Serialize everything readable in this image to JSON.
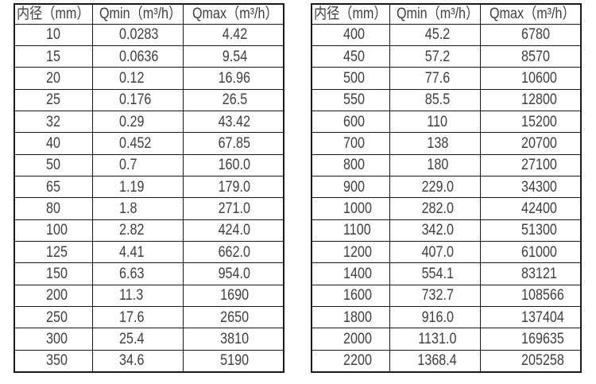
{
  "page": {
    "background": "#ffffff",
    "description": "two flow-rate specification tables side by side"
  },
  "style": {
    "border_color": "#1a1a1a",
    "text_color": "#404040",
    "table_background": "#ffffff"
  },
  "tables": [
    {
      "name": "flow-table-small-diameters",
      "columns": [
        "内径（mm）",
        "Qmin（m³/h）",
        "Qmax（m³/h）"
      ],
      "rows": [
        [
          "10",
          "0.0283",
          "4.42"
        ],
        [
          "15",
          "0.0636",
          "9.54"
        ],
        [
          "20",
          "0.12",
          "16.96"
        ],
        [
          "25",
          "0.176",
          "26.5"
        ],
        [
          "32",
          "0.29",
          "43.42"
        ],
        [
          "40",
          "0.452",
          "67.85"
        ],
        [
          "50",
          "0.7",
          "160.0"
        ],
        [
          "65",
          "1.19",
          "179.0"
        ],
        [
          "80",
          "1.8",
          "271.0"
        ],
        [
          "100",
          "2.82",
          "424.0"
        ],
        [
          "125",
          "4.41",
          "662.0"
        ],
        [
          "150",
          "6.63",
          "954.0"
        ],
        [
          "200",
          "11.3",
          "1690"
        ],
        [
          "250",
          "17.6",
          "2650"
        ],
        [
          "300",
          "25.4",
          "3810"
        ],
        [
          "350",
          "34.6",
          "5190"
        ]
      ]
    },
    {
      "name": "flow-table-large-diameters",
      "columns": [
        "内径（mm）",
        "Qmin（m³/h）",
        "Qmax（m³/h）"
      ],
      "rows": [
        [
          "400",
          "45.2",
          "6780"
        ],
        [
          "450",
          "57.2",
          "8570"
        ],
        [
          "500",
          "77.6",
          "10600"
        ],
        [
          "550",
          "85.5",
          "12800"
        ],
        [
          "600",
          "110",
          "15200"
        ],
        [
          "700",
          "138",
          "20700"
        ],
        [
          "800",
          "180",
          "27100"
        ],
        [
          "900",
          "229.0",
          "34300"
        ],
        [
          "1000",
          "282.0",
          "42400"
        ],
        [
          "1100",
          "342.0",
          "51300"
        ],
        [
          "1200",
          "407.0",
          "61000"
        ],
        [
          "1400",
          "554.1",
          "83121"
        ],
        [
          "1600",
          "732.7",
          "108566"
        ],
        [
          "1800",
          "916.0",
          "137404"
        ],
        [
          "2000",
          "1131.0",
          "169635"
        ],
        [
          "2200",
          "1368.4",
          "205258"
        ]
      ]
    }
  ]
}
